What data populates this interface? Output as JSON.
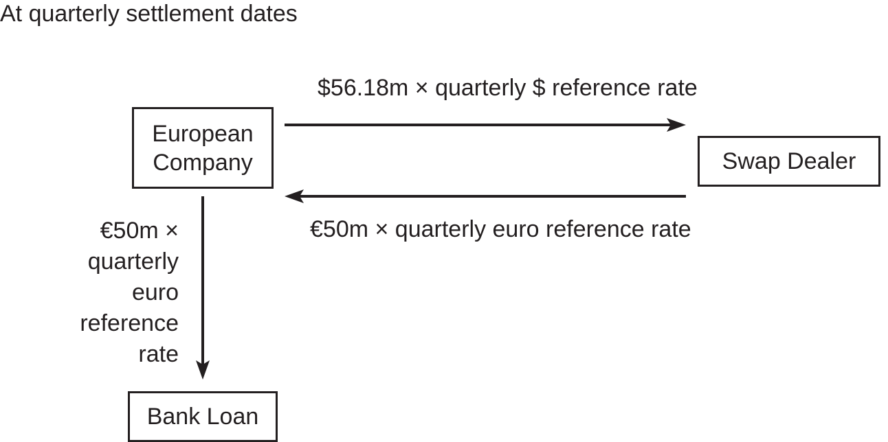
{
  "diagram": {
    "title": "At quarterly settlement dates",
    "nodes": {
      "european_company": {
        "line1": "European",
        "line2": "Company"
      },
      "swap_dealer": {
        "label": "Swap Dealer"
      },
      "bank_loan": {
        "label": "Bank Loan"
      }
    },
    "edges": {
      "company_to_dealer": {
        "label": "$56.18m × quarterly $ reference rate"
      },
      "dealer_to_company": {
        "label": "€50m × quarterly euro reference rate"
      },
      "company_to_bank": {
        "lines": [
          "€50m ×",
          "quarterly",
          "euro",
          "reference",
          "rate"
        ]
      }
    }
  }
}
